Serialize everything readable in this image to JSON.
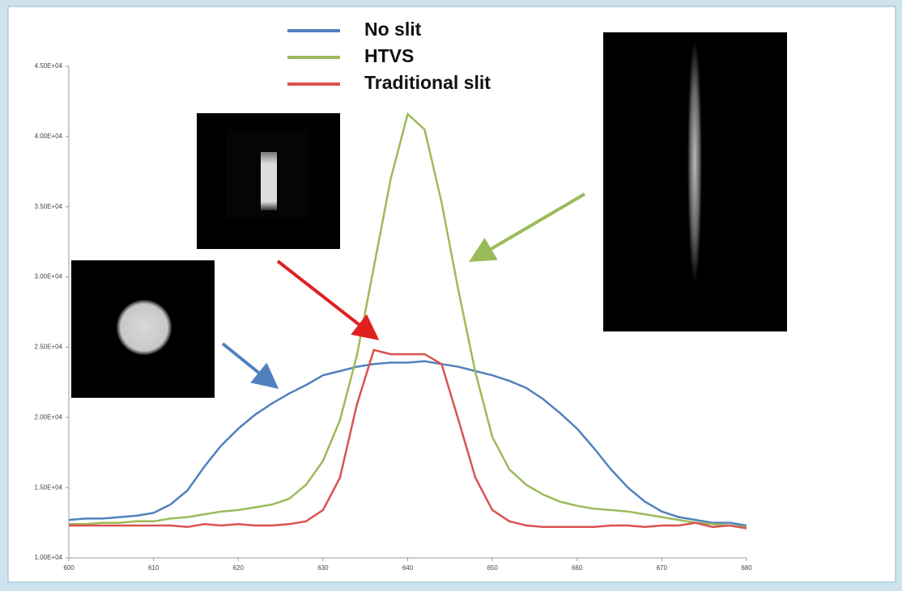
{
  "chart_data": {
    "type": "line",
    "x": [
      600,
      602,
      604,
      606,
      608,
      610,
      612,
      614,
      616,
      618,
      620,
      622,
      624,
      626,
      628,
      630,
      632,
      634,
      636,
      638,
      640,
      642,
      644,
      646,
      648,
      650,
      652,
      654,
      656,
      658,
      660,
      662,
      664,
      666,
      668,
      670,
      672,
      674,
      676,
      678,
      680
    ],
    "series": [
      {
        "name": "No slit",
        "color": "#4f81bd",
        "values": [
          12700,
          12800,
          12800,
          12900,
          13000,
          13200,
          13800,
          14800,
          16500,
          18000,
          19200,
          20200,
          21000,
          21700,
          22300,
          23000,
          23300,
          23600,
          23800,
          23900,
          23900,
          24000,
          23800,
          23600,
          23300,
          23000,
          22600,
          22100,
          21300,
          20300,
          19200,
          17800,
          16300,
          15000,
          14000,
          13300,
          12900,
          12700,
          12500,
          12500,
          12300
        ]
      },
      {
        "name": "HTVS",
        "color": "#9bbb59",
        "values": [
          12400,
          12400,
          12500,
          12500,
          12600,
          12600,
          12800,
          12900,
          13100,
          13300,
          13400,
          13600,
          13800,
          14200,
          15200,
          16900,
          19800,
          24400,
          30700,
          37000,
          41600,
          40500,
          35300,
          29000,
          23200,
          18600,
          16300,
          15200,
          14500,
          14000,
          13700,
          13500,
          13400,
          13300,
          13100,
          12900,
          12700,
          12500,
          12400,
          12300,
          12200
        ]
      },
      {
        "name": "Traditional slit",
        "color": "#d9534f",
        "values": [
          12300,
          12300,
          12300,
          12300,
          12300,
          12300,
          12300,
          12200,
          12400,
          12300,
          12400,
          12300,
          12300,
          12400,
          12600,
          13400,
          15700,
          20900,
          24800,
          24500,
          24500,
          24500,
          23800,
          19800,
          15700,
          13400,
          12600,
          12300,
          12200,
          12200,
          12200,
          12200,
          12300,
          12300,
          12200,
          12300,
          12300,
          12500,
          12200,
          12300,
          12100
        ]
      }
    ],
    "xlim": [
      600,
      680
    ],
    "xticks": [
      600,
      610,
      620,
      630,
      640,
      650,
      660,
      670,
      680
    ],
    "ylim": [
      10000,
      45000
    ],
    "yticks": [
      {
        "value": 10000,
        "label": "1.00E+04"
      },
      {
        "value": 15000,
        "label": "1.50E+04"
      },
      {
        "value": 20000,
        "label": "2.00E+04"
      },
      {
        "value": 25000,
        "label": "2.50E+04"
      },
      {
        "value": 30000,
        "label": "3.00E+04"
      },
      {
        "value": 35000,
        "label": "3.50E+04"
      },
      {
        "value": 40000,
        "label": "4.00E+04"
      },
      {
        "value": 45000,
        "label": "4.50E+04"
      }
    ],
    "grid": false
  }
}
